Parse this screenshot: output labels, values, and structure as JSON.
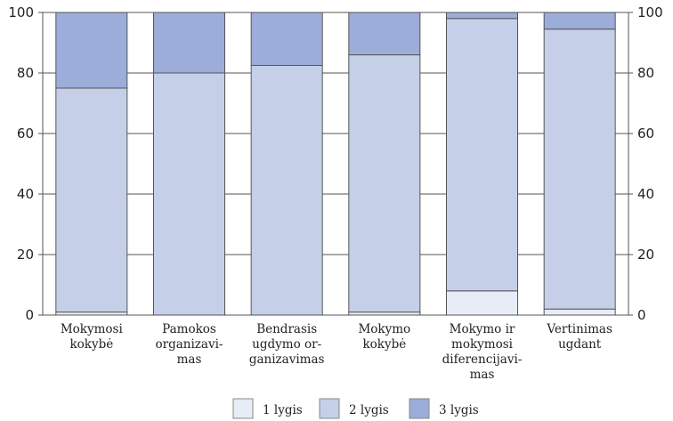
{
  "chart_data": {
    "type": "bar",
    "stacked": true,
    "categories": [
      [
        "Mokymosi",
        "kokybė"
      ],
      [
        "Pamokos",
        "organizavi-",
        "mas"
      ],
      [
        "Bendrasis",
        "ugdymo or-",
        "ganizavimas"
      ],
      [
        "Mokymo",
        "kokybė"
      ],
      [
        "Mokymo ir",
        "mokymosi",
        "diferencijavi-",
        "mas"
      ],
      [
        "Vertinimas",
        "ugdant"
      ]
    ],
    "series": [
      {
        "name": "1 lygis",
        "values": [
          1,
          0,
          0,
          1,
          8,
          2
        ],
        "color": "#e8ecf6"
      },
      {
        "name": "2 lygis",
        "values": [
          74,
          80,
          82.5,
          85,
          90,
          92.5
        ],
        "color": "#c5d0e8"
      },
      {
        "name": "3 lygis",
        "values": [
          25,
          20,
          17.5,
          14,
          2,
          5.5
        ],
        "color": "#9badd8"
      }
    ],
    "y_ticks": [
      0,
      20,
      40,
      60,
      80,
      100
    ],
    "ylim": [
      0,
      100
    ],
    "title": "",
    "xlabel": "",
    "ylabel": "",
    "grid": true,
    "legend_position": "bottom",
    "grid_color": "#ffffff",
    "plot_bg": "#ffffff"
  }
}
